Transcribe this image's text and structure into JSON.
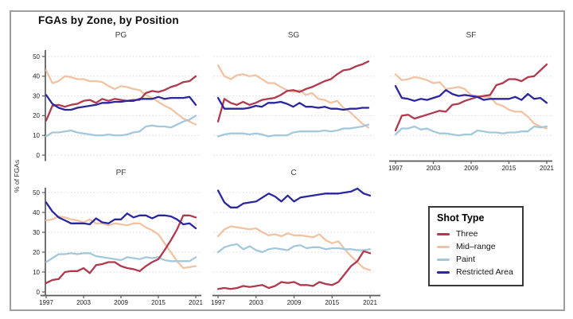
{
  "chart_data": {
    "type": "line",
    "title": "FGAs by Zone, by Position",
    "ylabel": "% of FGAs",
    "grid": "dotted-horizontal",
    "ylim": [
      0,
      52
    ],
    "yticks": [
      0,
      10,
      20,
      30,
      40,
      50
    ],
    "y_tick_labels": [
      "0",
      "10",
      "20",
      "30",
      "40",
      "50"
    ],
    "xticks": [
      1997,
      2003,
      2009,
      2015,
      2021
    ],
    "x_tick_labels": [
      "1997",
      "2003",
      "2009",
      "2015",
      "2021"
    ],
    "x": [
      1997,
      1998,
      1999,
      2000,
      2001,
      2002,
      2003,
      2004,
      2005,
      2006,
      2007,
      2008,
      2009,
      2010,
      2011,
      2012,
      2013,
      2014,
      2015,
      2016,
      2017,
      2018,
      2019,
      2020,
      2021
    ],
    "legend": {
      "title": "Shot Type",
      "position": "bottom-right",
      "entries": [
        {
          "label": "Three",
          "color": "#b0394e"
        },
        {
          "label": "Mid–range",
          "color": "#f2c3a2"
        },
        {
          "label": "Paint",
          "color": "#a4c8db"
        },
        {
          "label": "Restricted Area",
          "color": "#2a26a0"
        }
      ]
    },
    "facets": [
      {
        "title": "PG",
        "values": {
          "Three": [
            17.5,
            25,
            25.5,
            24.5,
            25.5,
            26,
            27.5,
            28,
            26.5,
            28.5,
            27.5,
            28.5,
            28,
            27.5,
            28,
            28,
            31.5,
            32.5,
            32,
            33,
            34.5,
            35.5,
            37,
            37.5,
            40
          ],
          "Mid–range": [
            43,
            36.5,
            37.5,
            40,
            39.5,
            38.5,
            38.5,
            37.5,
            37.5,
            37,
            35,
            33.5,
            35,
            34.5,
            33.5,
            33,
            30.5,
            29,
            27,
            25,
            23.5,
            21,
            18.5,
            17,
            15.5
          ],
          "Paint": [
            9.5,
            11.5,
            11.5,
            12,
            12.5,
            11.5,
            11,
            10.5,
            10,
            10,
            10.5,
            10,
            10,
            10.5,
            11.5,
            12,
            14.5,
            15,
            14.5,
            14.5,
            14,
            15.5,
            17,
            18,
            20
          ],
          "Restricted Area": [
            30.5,
            26,
            24,
            23,
            23,
            24,
            24.5,
            25,
            25.5,
            26.5,
            26.5,
            27,
            27,
            27.5,
            27.5,
            28.5,
            28.5,
            28.5,
            29.5,
            28.5,
            29,
            29,
            29,
            29.5,
            25.5
          ]
        }
      },
      {
        "title": "SG",
        "values": {
          "Three": [
            17,
            28.5,
            26.5,
            25.5,
            27,
            25.5,
            26.5,
            28,
            28.5,
            29,
            30.5,
            32.5,
            33,
            32,
            33.5,
            34.5,
            36,
            37.5,
            38.5,
            41,
            43,
            43.5,
            45,
            46,
            47.5
          ],
          "Mid–range": [
            45.5,
            40,
            38.5,
            40.5,
            41,
            40,
            40.5,
            38.5,
            36.5,
            36.5,
            34.5,
            33,
            32,
            33,
            30.5,
            31.5,
            28.5,
            28,
            26.5,
            27.5,
            24,
            22,
            19,
            16,
            14
          ],
          "Paint": [
            9.5,
            10.5,
            11,
            11,
            11,
            10.5,
            11,
            10.5,
            9.5,
            10,
            10,
            10,
            11.5,
            12,
            12,
            12,
            12,
            12.5,
            12,
            12.5,
            13.5,
            13.5,
            14,
            14.5,
            15.5
          ],
          "Restricted Area": [
            29,
            23.5,
            23.5,
            23.5,
            23.5,
            24,
            25,
            24.5,
            26.5,
            26.5,
            27,
            26,
            24.5,
            26.5,
            24.5,
            24.5,
            24,
            24.5,
            23.5,
            23.5,
            23,
            23.5,
            23.5,
            24,
            24
          ]
        }
      },
      {
        "title": "SF",
        "values": {
          "Three": [
            12.5,
            20,
            20.5,
            18.5,
            19.5,
            20.5,
            21.5,
            22.5,
            22,
            25.5,
            26,
            27.5,
            28.5,
            29.5,
            30,
            30.5,
            35.5,
            36.5,
            38.5,
            38.5,
            37.5,
            39.5,
            40,
            43,
            46
          ],
          "Mid–range": [
            41,
            38,
            38.5,
            39.5,
            39,
            38,
            36.5,
            37,
            33.5,
            34,
            34.5,
            33.5,
            30.5,
            30,
            29.5,
            29.5,
            26,
            25,
            23,
            22,
            22,
            19.5,
            16,
            14.5,
            13.5
          ],
          "Paint": [
            10.5,
            13.5,
            13.5,
            14.5,
            13,
            13.5,
            12,
            11,
            11,
            10.5,
            10,
            10.5,
            10.5,
            12.5,
            12,
            11.5,
            11.5,
            11,
            11.5,
            11.5,
            12,
            12,
            14.5,
            14,
            14.5
          ],
          "Restricted Area": [
            35,
            29,
            28.5,
            27.5,
            28.5,
            28,
            29,
            30,
            33,
            31,
            30,
            30.5,
            30,
            29.5,
            28,
            28.5,
            28.5,
            28.5,
            28.5,
            29.5,
            28,
            31,
            28.5,
            29,
            26.5
          ]
        }
      },
      {
        "title": "PF",
        "values": {
          "Three": [
            4.5,
            6,
            6.5,
            10,
            10.5,
            10.5,
            12,
            9.5,
            13.5,
            14,
            15,
            15,
            13,
            12,
            11.5,
            10.5,
            13,
            15,
            16.5,
            21,
            26,
            31.5,
            38.5,
            38.5,
            37.5
          ],
          "Mid–range": [
            36,
            36.5,
            38,
            37.5,
            36.5,
            36,
            35,
            36.5,
            34.5,
            34.5,
            33.5,
            34.5,
            34,
            33.5,
            34.5,
            34.5,
            32.5,
            31,
            29,
            24.5,
            20,
            15.5,
            12,
            12.5,
            13
          ],
          "Paint": [
            15,
            17,
            19,
            19,
            19.5,
            19,
            19.5,
            19.5,
            18,
            17.5,
            17,
            16.5,
            16,
            17.5,
            17,
            16.5,
            17.5,
            17,
            17.5,
            16,
            15.5,
            15.5,
            15.5,
            15.5,
            17.5
          ],
          "Restricted Area": [
            45,
            40.5,
            37.5,
            36,
            34.5,
            34.5,
            34.5,
            34,
            37,
            35,
            34.5,
            36.5,
            36.5,
            39.5,
            37.5,
            38.5,
            38.5,
            37,
            38.5,
            38.5,
            38,
            36.5,
            34,
            34.5,
            32
          ]
        }
      },
      {
        "title": "C",
        "values": {
          "Three": [
            1.5,
            2,
            1.5,
            2,
            3,
            2.5,
            3,
            3.5,
            2,
            3,
            5,
            4.5,
            5,
            3.5,
            3.5,
            3,
            5,
            4,
            3.5,
            5,
            9,
            13,
            15.5,
            20.5,
            19.5
          ],
          "Mid–range": [
            28,
            31.5,
            33,
            32.5,
            32,
            31.5,
            32,
            30,
            28.5,
            29,
            28,
            29.5,
            28.5,
            28.5,
            28,
            27.5,
            29,
            26,
            24.5,
            25.5,
            21.5,
            18,
            15,
            12,
            11
          ],
          "Paint": [
            20,
            22.5,
            23.5,
            24,
            21.5,
            23,
            21,
            20,
            21.5,
            22,
            21.5,
            21,
            23,
            23.5,
            22,
            22.5,
            22.5,
            21.5,
            22,
            22,
            21.5,
            21.5,
            21,
            21,
            21.5
          ],
          "Restricted Area": [
            51,
            45,
            42.5,
            42.5,
            44.5,
            45,
            45.5,
            47.5,
            49.5,
            48,
            45.5,
            48.5,
            45.5,
            47.5,
            48,
            48.5,
            49,
            49.5,
            49.5,
            49.5,
            50,
            50.5,
            52,
            49.5,
            48.5
          ]
        }
      }
    ]
  }
}
